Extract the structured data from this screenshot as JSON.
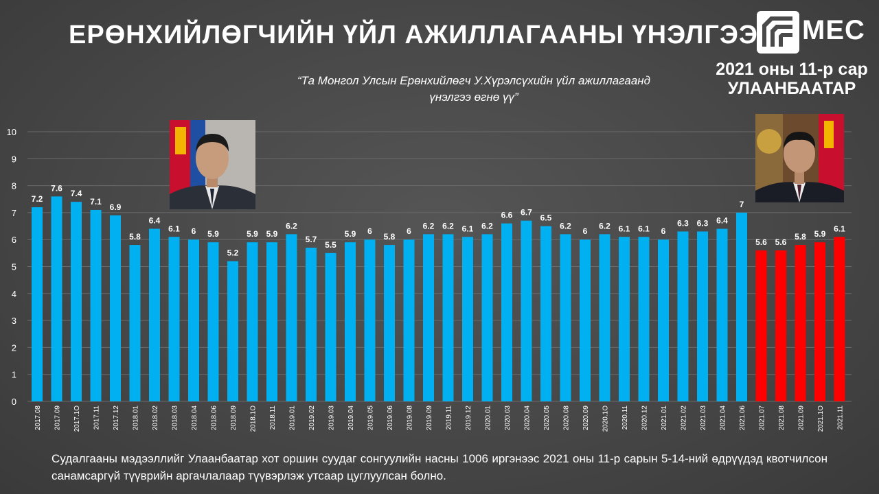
{
  "header": {
    "title": "ЕРӨНХИЙЛӨГЧИЙН ҮЙЛ АЖИЛЛАГААНЫ ҮНЭЛГЭЭ",
    "logo_text": "MEC",
    "period_line1": "2021 оны 11-р сар",
    "period_line2": "УЛААНБААТАР",
    "quote_line1": "“Та Монгол Улсын Ерөнхийлөгч У.Хүрэлсүхийн үйл ажиллагаанд",
    "quote_line2": "үнэлгээ өгнө үү”"
  },
  "colors": {
    "blue_bar": "#00b0f0",
    "red_bar": "#ff0000",
    "grid": "#6a6a6a"
  },
  "chart_data": {
    "type": "bar",
    "categories": [
      "2017.08",
      "2017.09",
      "2017.1O",
      "2017.11",
      "2017.12",
      "2018.01",
      "2018.02",
      "2018.03",
      "2018.04",
      "2018.06",
      "2018.09",
      "2018.1O",
      "2018.11",
      "2019.01",
      "2019.02",
      "2019.03",
      "2019.04",
      "2019.05",
      "2019.06",
      "2019.08",
      "2019.09",
      "2019.11",
      "2019.12",
      "2020.01",
      "2020.03",
      "2020.04",
      "2020.05",
      "2020.08",
      "2020.09",
      "2020.1O",
      "2020.11",
      "2020.12",
      "2021.01",
      "2021.02",
      "2021.03",
      "2021.04",
      "2021.06",
      "2021.07",
      "2021.08",
      "2021.09",
      "2021.1O",
      "2021.11"
    ],
    "values": [
      7.2,
      7.6,
      7.4,
      7.1,
      6.9,
      5.8,
      6.4,
      6.1,
      6,
      5.9,
      5.2,
      5.9,
      5.9,
      6.2,
      5.7,
      5.5,
      5.9,
      6,
      5.8,
      6,
      6.2,
      6.2,
      6.1,
      6.2,
      6.6,
      6.7,
      6.5,
      6.2,
      6,
      6.2,
      6.1,
      6.1,
      6,
      6.3,
      6.3,
      6.4,
      7,
      5.6,
      5.6,
      5.8,
      5.9,
      6.1
    ],
    "value_labels": [
      "7.2",
      "7.6",
      "7.4",
      "7.1",
      "6.9",
      "5.8",
      "6.4",
      "6.1",
      "6",
      "5.9",
      "5.2",
      "5.9",
      "5.9",
      "6.2",
      "5.7",
      "5.5",
      "5.9",
      "6",
      "5.8",
      "6",
      "6.2",
      "6.2",
      "6.1",
      "6.2",
      "6.6",
      "6.7",
      "6.5",
      "6.2",
      "6",
      "6.2",
      "6.1",
      "6.1",
      "6",
      "6.3",
      "6.3",
      "6.4",
      "7",
      "5.6",
      "5.6",
      "5.8",
      "5.9",
      "6.1"
    ],
    "highlight_from_index": 37,
    "ylim": [
      0,
      10
    ],
    "yticks": [
      0,
      1,
      2,
      3,
      4,
      5,
      6,
      7,
      8,
      9,
      10
    ],
    "grid": true
  },
  "footer": {
    "note": "Судалгааны мэдээллийг Улаанбаатар хот оршин суудаг сонгуулийн насны 1006 иргэнээс 2021 оны 11-р сарын 5-14-ний өдрүүдэд квотчилсон санамсаргүй түүврийн аргачлалаар түүвэрлэж утсаар цуглуулсан болно."
  }
}
